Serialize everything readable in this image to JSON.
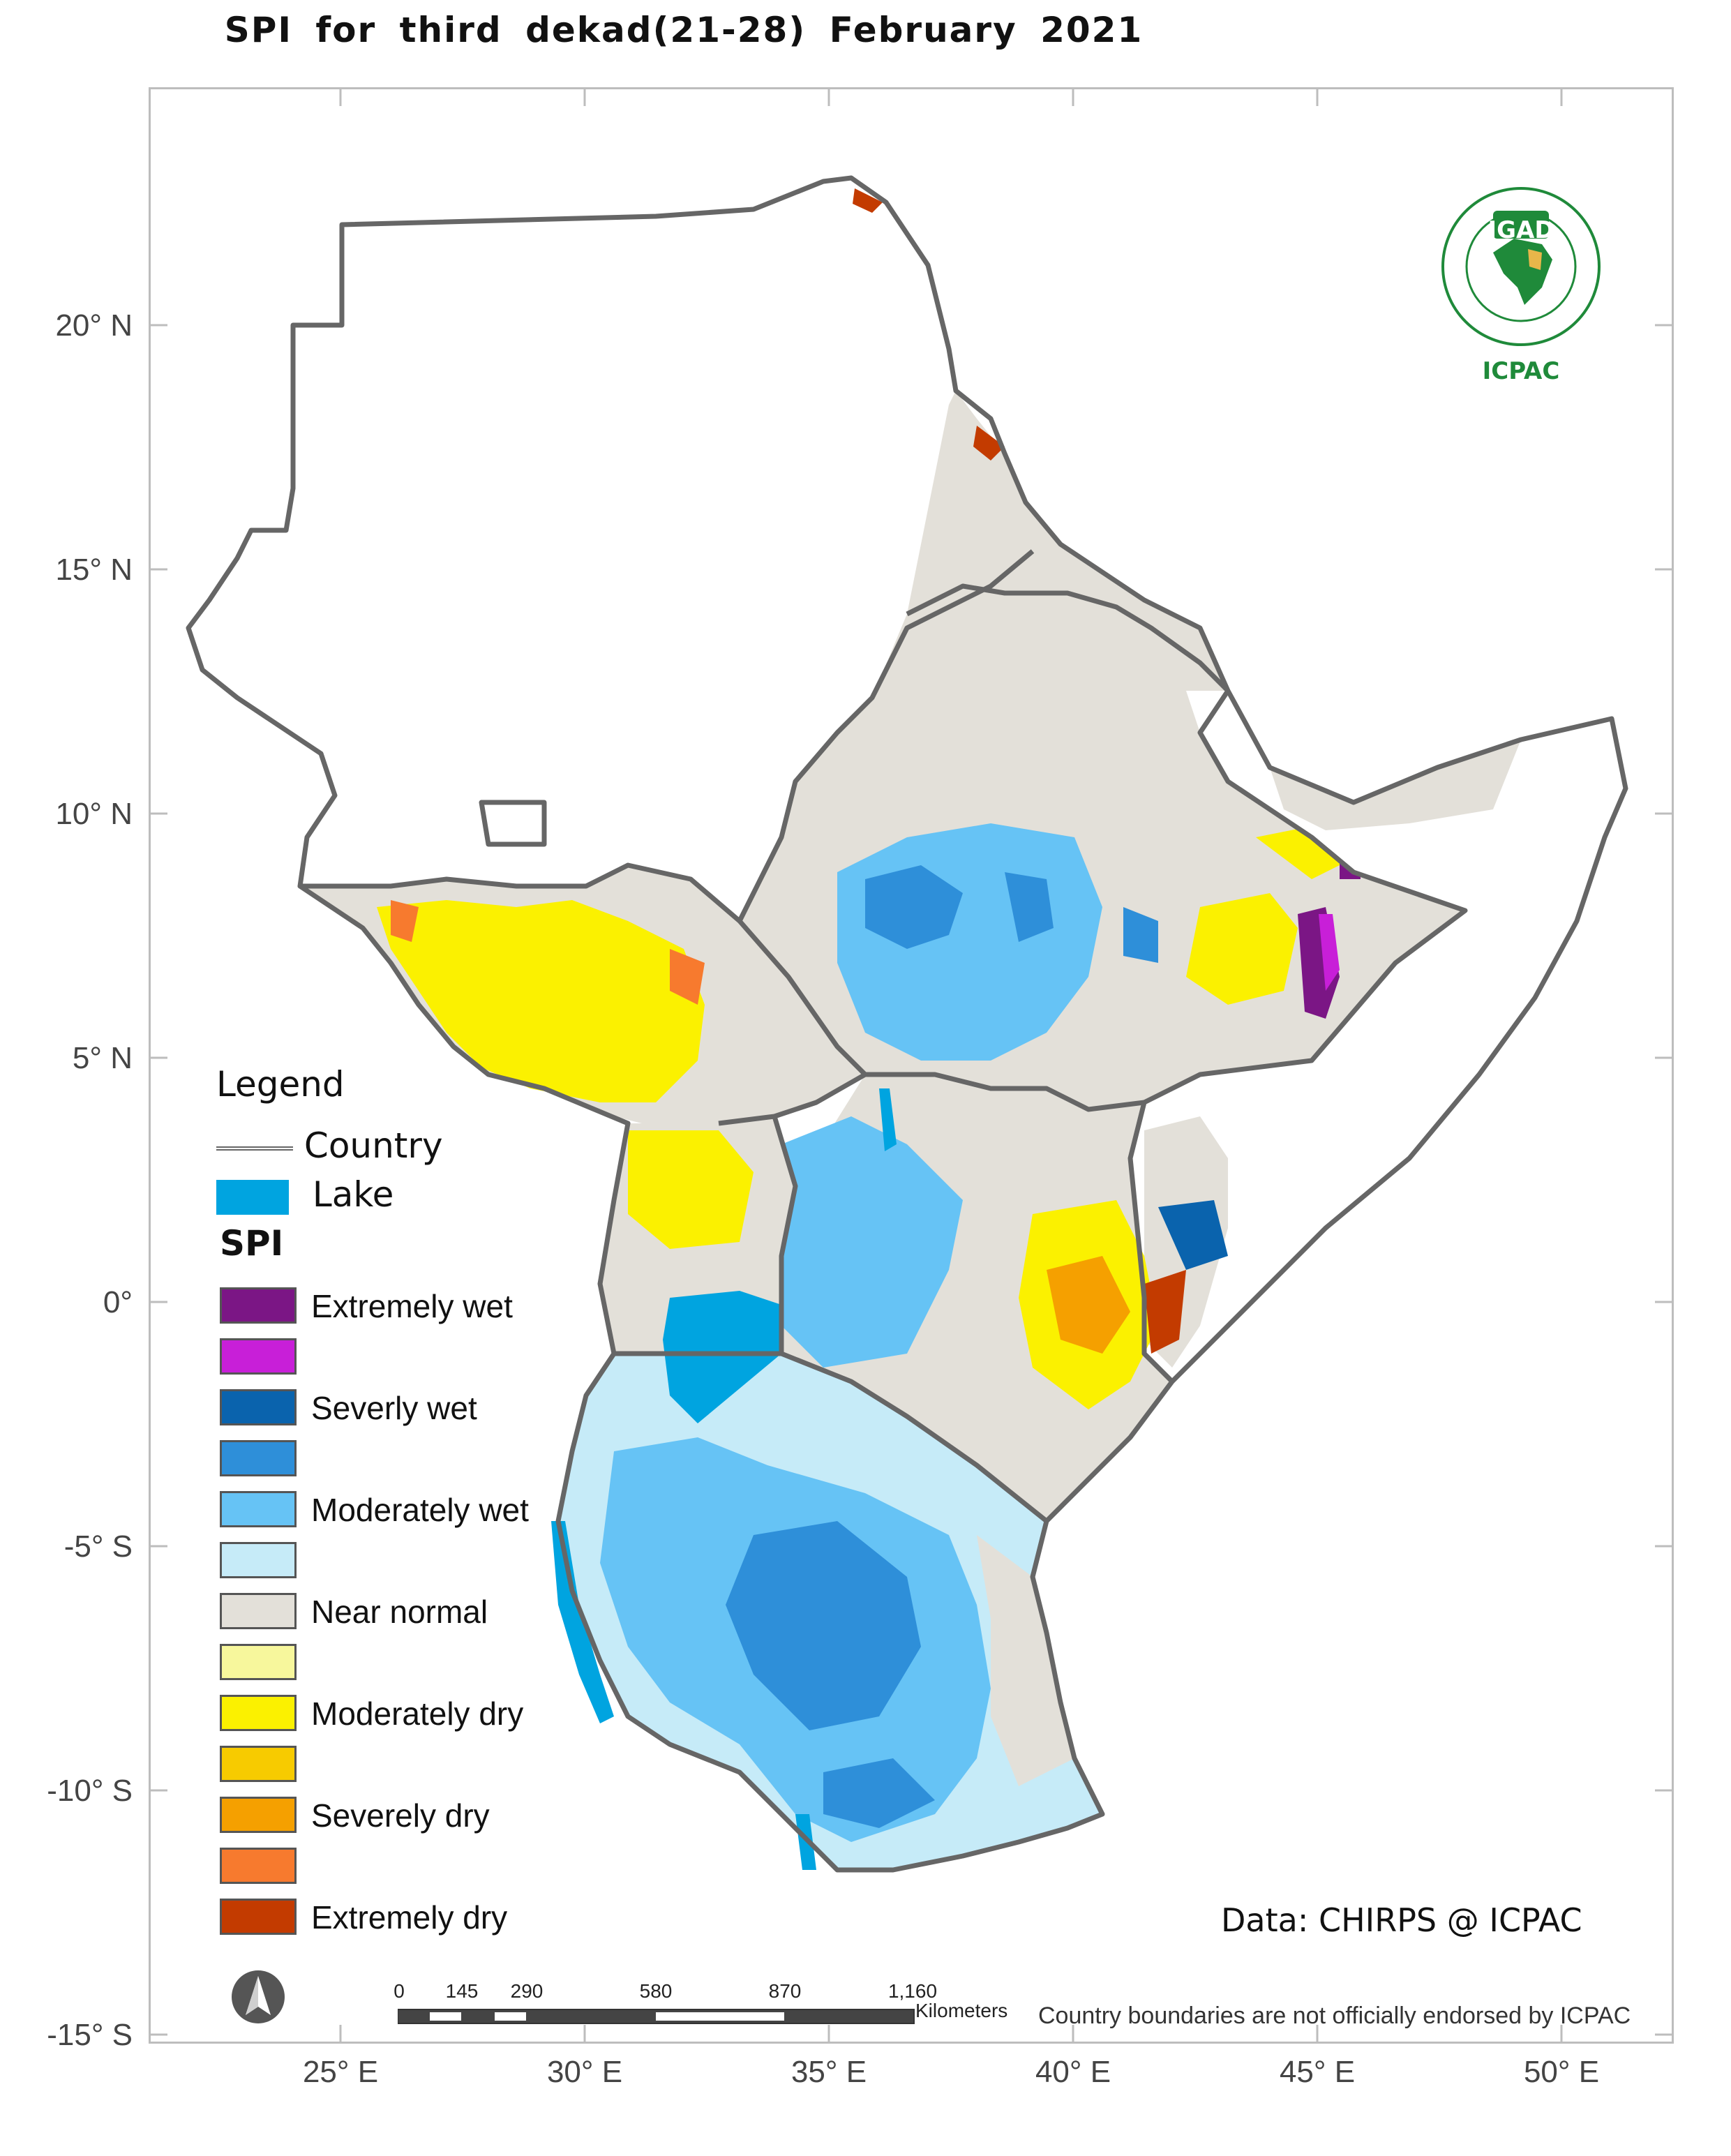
{
  "title": "SPI  for   third  dekad(21-28)  February 2021",
  "axes": {
    "latitude_labels": [
      "20° N",
      "15° N",
      "10° N",
      "5° N",
      "0°",
      "-5° S",
      "-10° S",
      "-15° S"
    ],
    "longitude_labels": [
      "25° E",
      "30° E",
      "35° E",
      "40° E",
      "45° E",
      "50° E"
    ]
  },
  "legend": {
    "title": "Legend",
    "country_label": "Country",
    "lake_label": "Lake",
    "spi_title": "SPI",
    "classes": [
      {
        "label": "Extremely wet",
        "color": "#7b1685"
      },
      {
        "label": "",
        "color": "#c81fd8"
      },
      {
        "label": "Severly wet",
        "color": "#0a63ad"
      },
      {
        "label": "",
        "color": "#2e8fd9"
      },
      {
        "label": "Moderately wet",
        "color": "#66c3f5"
      },
      {
        "label": "",
        "color": "#c6ebf8"
      },
      {
        "label": "Near normal",
        "color": "#e3e0d9"
      },
      {
        "label": "",
        "color": "#f7f79c"
      },
      {
        "label": "Moderately dry",
        "color": "#fbf100"
      },
      {
        "label": "",
        "color": "#f7cb00"
      },
      {
        "label": "Severely dry",
        "color": "#f5a000"
      },
      {
        "label": "",
        "color": "#f77a2e"
      },
      {
        "label": "Extremely dry",
        "color": "#c33b00"
      }
    ],
    "lake_color": "#00a4e0",
    "country_border_color": "#666666"
  },
  "credit": "Data: CHIRPS @ ICPAC",
  "disclaimer": "Country boundaries are not officially endorsed by ICPAC",
  "scale_bar": {
    "ticks": [
      "0",
      "145",
      "290",
      "580",
      "870",
      "1,160"
    ],
    "unit": "Kilometers"
  },
  "logo": {
    "top_text": "IGAD",
    "bottom_text": "ICPAC",
    "color": "#1f8a3a"
  },
  "north_arrow_icon": "north-arrow-icon"
}
